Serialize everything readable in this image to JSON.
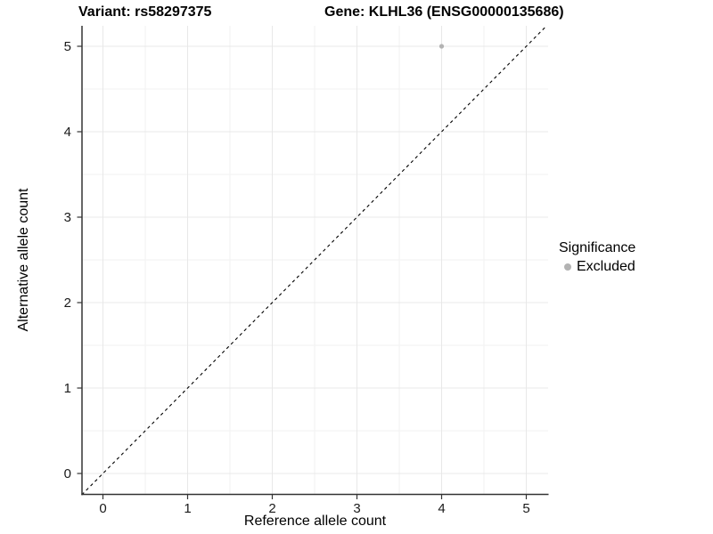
{
  "chart_data": {
    "type": "scatter",
    "title_left": "Variant: rs58297375",
    "title_right": "Gene: KLHL36 (ENSG00000135686)",
    "xlabel": "Reference allele count",
    "ylabel": "Alternative allele count",
    "xlim": [
      -0.25,
      5.25
    ],
    "ylim": [
      -0.25,
      5.25
    ],
    "x_ticks": [
      0,
      1,
      2,
      3,
      4,
      5
    ],
    "y_ticks": [
      0,
      1,
      2,
      3,
      4,
      5
    ],
    "minor_ticks": [
      0.5,
      1.5,
      2.5,
      3.5,
      4.5
    ],
    "grid": "on",
    "identity_line": {
      "style": "dashed",
      "equation": "y = x",
      "from": [
        -0.25,
        -0.25
      ],
      "to": [
        5.24,
        5.24
      ]
    },
    "series": [
      {
        "name": "Excluded",
        "color": "#b3b3b3",
        "points": [
          {
            "x": 4,
            "y": 5
          }
        ]
      }
    ],
    "legend": {
      "title": "Significance",
      "position": "right",
      "entries": [
        {
          "label": "Excluded",
          "color": "#b3b3b3"
        }
      ]
    }
  },
  "colors": {
    "background": "#ffffff",
    "grid_major": "#e8e8e8",
    "grid_minor": "#f2f2f2",
    "axis_line": "#333333",
    "tick_label": "#1a1a1a",
    "title_text": "#000000",
    "identity_line": "#000000",
    "excluded_point": "#b3b3b3"
  }
}
